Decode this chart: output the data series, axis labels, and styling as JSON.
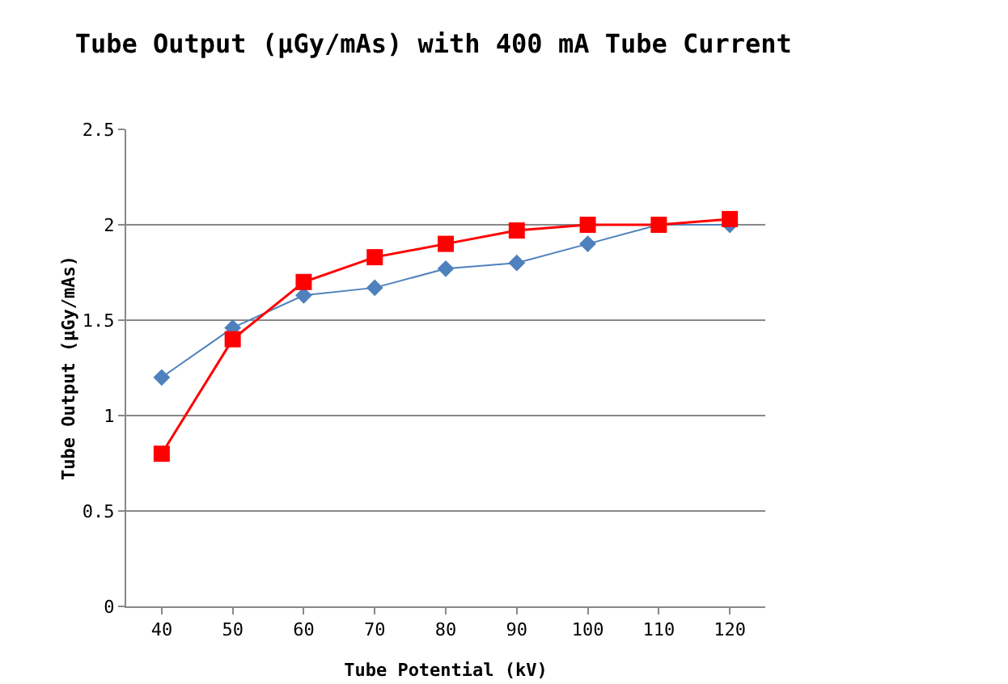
{
  "chart_data": {
    "type": "line",
    "title": "Tube Output (µGy/mAs) with 400 mA Tube Current",
    "xlabel": "Tube Potential (kV)",
    "ylabel": "Tube Output (µGy/mAs)",
    "categories": [
      "40",
      "50",
      "60",
      "70",
      "80",
      "90",
      "100",
      "110",
      "120"
    ],
    "series": [
      {
        "color": "#4f81bd",
        "marker": "diamond",
        "values": [
          1.2,
          1.46,
          1.63,
          1.67,
          1.77,
          1.8,
          1.9,
          2.0,
          2.0
        ]
      },
      {
        "color": "#ff0000",
        "marker": "square",
        "values": [
          0.8,
          1.4,
          1.7,
          1.83,
          1.9,
          1.97,
          2.0,
          2.0,
          2.03
        ]
      }
    ],
    "ylim": [
      0,
      2.5
    ],
    "yticks": [
      0,
      0.5,
      1,
      1.5,
      2,
      2.5
    ],
    "grid": "y"
  }
}
